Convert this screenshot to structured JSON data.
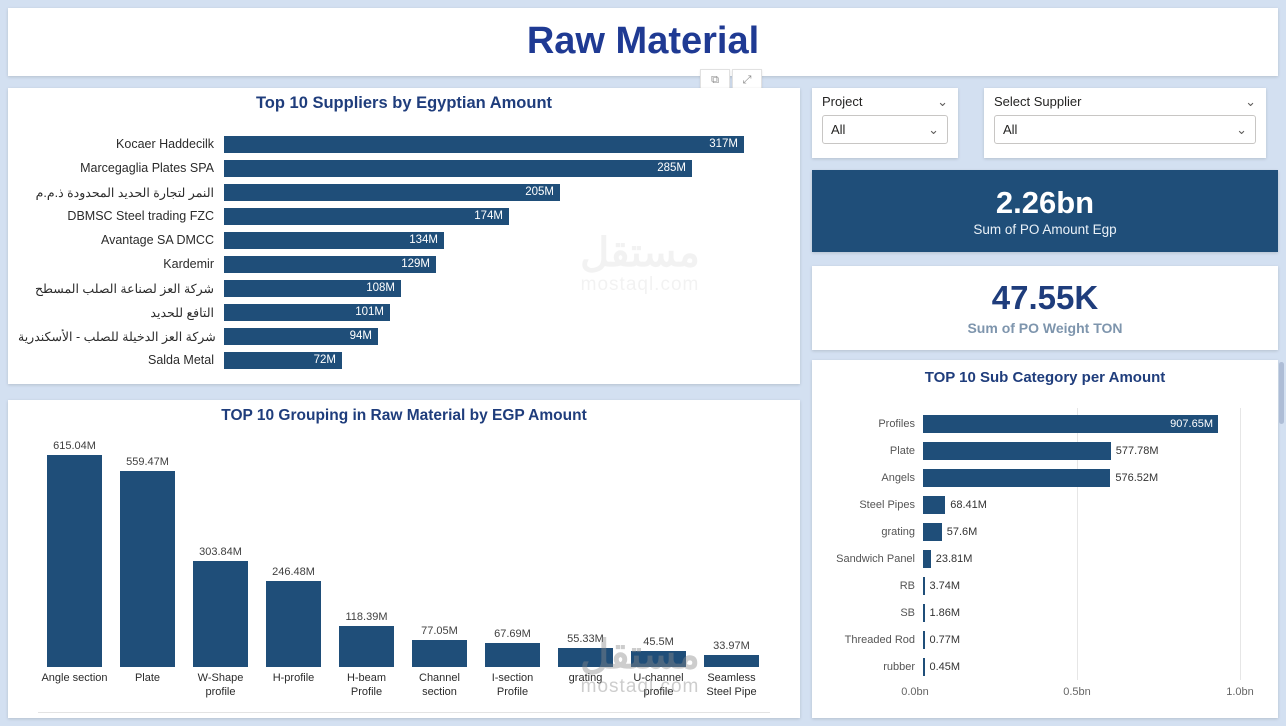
{
  "header": {
    "title": "Raw Material"
  },
  "toolbar": {
    "popout_icon": "⧉",
    "focus_icon": "⤢"
  },
  "icons": {
    "chevron": "⌄"
  },
  "filters": {
    "project": {
      "label": "Project",
      "value": "All"
    },
    "supplier": {
      "label": "Select Supplier",
      "value": "All"
    }
  },
  "kpis": {
    "po_amount": {
      "value": "2.26bn",
      "label": "Sum of PO Amount Egp"
    },
    "po_weight": {
      "value": "47.55K",
      "label": "Sum of PO Weight TON"
    }
  },
  "watermark": {
    "arabic": "مستقل",
    "domain": "mostaql.com"
  },
  "colors": {
    "bar": "#1f4e79",
    "title": "#1f3d7c",
    "header": "#1f3a93",
    "kpi_bg": "#1f4e79"
  },
  "chart_data": [
    {
      "id": "suppliers",
      "type": "bar",
      "orientation": "horizontal",
      "title": "Top 10 Suppliers by Egyptian Amount",
      "categories": [
        "Kocaer Haddecilk",
        "Marcegaglia Plates SPA",
        "النمر لتجارة الحديد المحدودة ذ.م.م",
        "DBMSC Steel trading FZC",
        "Avantage SA DMCC",
        "Kardemir",
        "شركة العز لصناعة الصلب المسطح",
        "التافع للحديد",
        "شركة العز الدخيلة للصلب - الأسكندرية",
        "Salda Metal"
      ],
      "values": [
        317,
        285,
        205,
        174,
        134,
        129,
        108,
        101,
        94,
        72
      ],
      "labels": [
        "317M",
        "285M",
        "205M",
        "174M",
        "134M",
        "129M",
        "108M",
        "101M",
        "94M",
        "72M"
      ],
      "xlabel": "",
      "ylabel": "",
      "value_labels": "inside-end",
      "legend": "none",
      "grid": "off"
    },
    {
      "id": "grouping",
      "type": "bar",
      "orientation": "vertical",
      "title": "TOP 10 Grouping in Raw Material by EGP Amount",
      "categories": [
        "Angle section",
        "Plate",
        "W-Shape profile",
        "H-profile",
        "H-beam Profile",
        "Channel section",
        "I-section Profile",
        "grating",
        "U-channel profile",
        "Seamless Steel Pipe"
      ],
      "values": [
        615.04,
        559.47,
        303.84,
        246.48,
        118.39,
        77.05,
        67.69,
        55.33,
        45.5,
        33.97
      ],
      "labels": [
        "615.04M",
        "559.47M",
        "303.84M",
        "246.48M",
        "118.39M",
        "77.05M",
        "67.69M",
        "55.33M",
        "45.5M",
        "33.97M"
      ],
      "xlabel": "",
      "ylabel": "",
      "value_labels": "above",
      "legend": "none",
      "grid": "off"
    },
    {
      "id": "subcategory",
      "type": "bar",
      "orientation": "horizontal",
      "title": "TOP 10 Sub Category per Amount",
      "categories": [
        "Profiles",
        "Plate",
        "Angels",
        "Steel Pipes",
        "grating",
        "Sandwich Panel",
        "RB",
        "SB",
        "Threaded Rod",
        "rubber"
      ],
      "values": [
        907.65,
        577.78,
        576.52,
        68.41,
        57.6,
        23.81,
        3.74,
        1.86,
        0.77,
        0.45
      ],
      "labels": [
        "907.65M",
        "577.78M",
        "576.52M",
        "68.41M",
        "57.6M",
        "23.81M",
        "3.74M",
        "1.86M",
        "0.77M",
        "0.45M"
      ],
      "xlim": [
        0,
        1000
      ],
      "x_ticks": [
        "0.0bn",
        "0.5bn",
        "1.0bn"
      ],
      "xlabel": "",
      "ylabel": "",
      "legend": "none",
      "grid": "vertical"
    }
  ]
}
